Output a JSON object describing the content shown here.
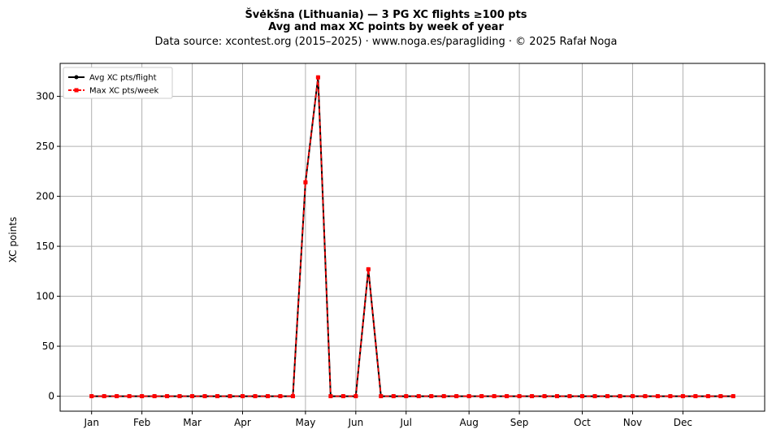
{
  "chart_data": {
    "type": "line",
    "title_line1": "Švėkšna (Lithuania)  —  3 PG XC flights ≥100 pts",
    "title_line2": "Avg and max XC points by week of year",
    "subtitle": "Data source: xcontest.org (2015–2025)  ·  www.noga.es/paragliding  ·  © 2025 Rafał Noga",
    "xlabel": "",
    "ylabel": "XC points",
    "ylim": [
      -15,
      333
    ],
    "xlim": [
      -2.5,
      53.5
    ],
    "grid": true,
    "legend_position": "top-left",
    "x_ticks": [
      {
        "x": 0,
        "label": "Jan"
      },
      {
        "x": 4,
        "label": "Feb"
      },
      {
        "x": 8,
        "label": "Mar"
      },
      {
        "x": 12,
        "label": "Apr"
      },
      {
        "x": 17,
        "label": "May"
      },
      {
        "x": 21,
        "label": "Jun"
      },
      {
        "x": 25,
        "label": "Jul"
      },
      {
        "x": 30,
        "label": "Aug"
      },
      {
        "x": 34,
        "label": "Sep"
      },
      {
        "x": 39,
        "label": "Oct"
      },
      {
        "x": 43,
        "label": "Nov"
      },
      {
        "x": 47,
        "label": "Dec"
      }
    ],
    "y_ticks": [
      0,
      50,
      100,
      150,
      200,
      250,
      300
    ],
    "x": [
      0,
      1,
      2,
      3,
      4,
      5,
      6,
      7,
      8,
      9,
      10,
      11,
      12,
      13,
      14,
      15,
      16,
      17,
      18,
      19,
      20,
      21,
      22,
      23,
      24,
      25,
      26,
      27,
      28,
      29,
      30,
      31,
      32,
      33,
      34,
      35,
      36,
      37,
      38,
      39,
      40,
      41,
      42,
      43,
      44,
      45,
      46,
      47,
      48,
      49,
      50,
      51
    ],
    "series": [
      {
        "name": "Avg XC pts/flight",
        "color": "#000000",
        "marker": "circle",
        "values": [
          0,
          0,
          0,
          0,
          0,
          0,
          0,
          0,
          0,
          0,
          0,
          0,
          0,
          0,
          0,
          0,
          0,
          214,
          319,
          0,
          0,
          0,
          127,
          0,
          0,
          0,
          0,
          0,
          0,
          0,
          0,
          0,
          0,
          0,
          0,
          0,
          0,
          0,
          0,
          0,
          0,
          0,
          0,
          0,
          0,
          0,
          0,
          0,
          0,
          0,
          0,
          0
        ]
      },
      {
        "name": "Max XC pts/week",
        "color": "#ff0000",
        "marker": "square",
        "linestyle": "dashed",
        "values": [
          0,
          0,
          0,
          0,
          0,
          0,
          0,
          0,
          0,
          0,
          0,
          0,
          0,
          0,
          0,
          0,
          0,
          214,
          319,
          0,
          0,
          0,
          127,
          0,
          0,
          0,
          0,
          0,
          0,
          0,
          0,
          0,
          0,
          0,
          0,
          0,
          0,
          0,
          0,
          0,
          0,
          0,
          0,
          0,
          0,
          0,
          0,
          0,
          0,
          0,
          0,
          0
        ]
      }
    ]
  }
}
